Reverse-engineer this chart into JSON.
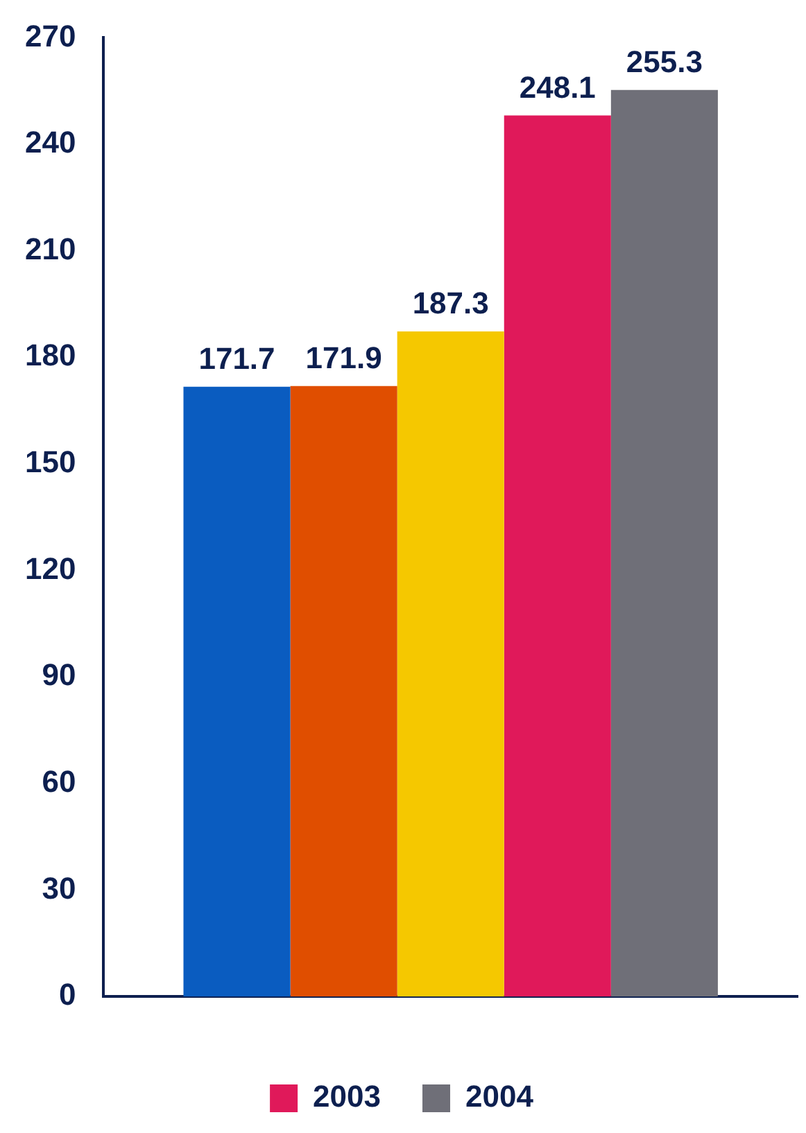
{
  "chart_data": {
    "type": "bar",
    "categories": [
      null
    ],
    "series": [
      {
        "color": "#0a5cc0",
        "values": [
          171.7
        ]
      },
      {
        "color": "#e04e00",
        "values": [
          171.9
        ]
      },
      {
        "color": "#f5c800",
        "values": [
          187.3
        ]
      },
      {
        "name": "2003",
        "color": "#e0195a",
        "values": [
          248.1
        ]
      },
      {
        "name": "2004",
        "color": "#6f6f78",
        "values": [
          255.3
        ]
      }
    ],
    "ylim": [
      0,
      270
    ],
    "yticks": [
      0,
      30,
      60,
      90,
      120,
      150,
      180,
      210,
      240,
      270
    ],
    "grid": false,
    "legend": "bottom",
    "data_labels": true
  }
}
